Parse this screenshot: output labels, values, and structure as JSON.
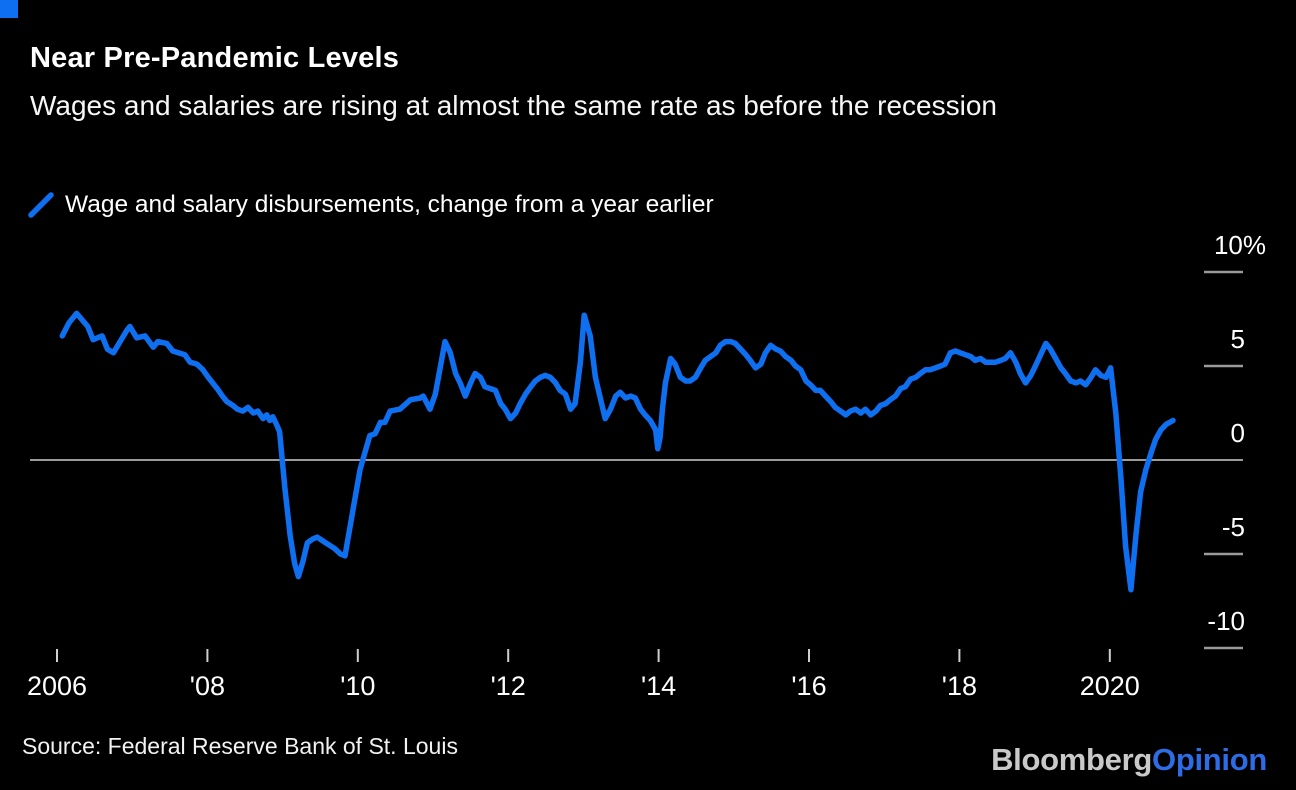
{
  "brand": {
    "mark_color": "#0e70f0",
    "logo_bloomberg": "Bloomberg",
    "logo_opinion": "Opinion",
    "bloomberg_color": "#c9c9c9",
    "opinion_color": "#2e6ce6"
  },
  "header": {
    "title": "Near Pre-Pandemic Levels",
    "subtitle": "Wages and salaries are rising at almost the same rate as before the recession"
  },
  "legend": {
    "label": "Wage and salary disbursements, change from a year earlier",
    "color": "#0e70f0"
  },
  "source": {
    "text": "Source: Federal Reserve Bank of St. Louis"
  },
  "chart_data": {
    "type": "line",
    "title": "Near Pre-Pandemic Levels",
    "subtitle": "Wages and salaries are rising at almost the same rate as before the recession",
    "unit": "%",
    "grid": "zero-line-only",
    "legend_position": "top-left",
    "x_range": [
      2005.6,
      2021.8
    ],
    "y_range": [
      -12,
      12
    ],
    "y_ticks": [
      {
        "label": "10%",
        "value": 10
      },
      {
        "label": "5",
        "value": 5
      },
      {
        "label": "0",
        "value": 0
      },
      {
        "label": "-5",
        "value": -5
      },
      {
        "label": "-10",
        "value": -10
      }
    ],
    "x_ticks": [
      {
        "label": "2006",
        "year": 2006
      },
      {
        "label": "'08",
        "year": 2008
      },
      {
        "label": "'10",
        "year": 2010
      },
      {
        "label": "'12",
        "year": 2012
      },
      {
        "label": "'14",
        "year": 2014
      },
      {
        "label": "'16",
        "year": 2016
      },
      {
        "label": "'18",
        "year": 2018
      },
      {
        "label": "2020",
        "year": 2020
      }
    ],
    "series": [
      {
        "name": "Wage and salary disbursements, change from a year earlier",
        "color": "#0e70f0",
        "points": [
          [
            2006.07,
            6.6
          ],
          [
            2006.16,
            7.3
          ],
          [
            2006.26,
            7.8
          ],
          [
            2006.41,
            7.1
          ],
          [
            2006.48,
            6.4
          ],
          [
            2006.6,
            6.6
          ],
          [
            2006.67,
            5.9
          ],
          [
            2006.75,
            5.7
          ],
          [
            2006.93,
            6.9
          ],
          [
            2006.97,
            7.1
          ],
          [
            2007.06,
            6.5
          ],
          [
            2007.17,
            6.6
          ],
          [
            2007.28,
            6.0
          ],
          [
            2007.34,
            6.3
          ],
          [
            2007.46,
            6.2
          ],
          [
            2007.54,
            5.8
          ],
          [
            2007.7,
            5.6
          ],
          [
            2007.77,
            5.2
          ],
          [
            2007.86,
            5.1
          ],
          [
            2007.94,
            4.8
          ],
          [
            2008.01,
            4.4
          ],
          [
            2008.13,
            3.8
          ],
          [
            2008.2,
            3.4
          ],
          [
            2008.26,
            3.1
          ],
          [
            2008.34,
            2.9
          ],
          [
            2008.4,
            2.7
          ],
          [
            2008.47,
            2.6
          ],
          [
            2008.54,
            2.8
          ],
          [
            2008.61,
            2.5
          ],
          [
            2008.67,
            2.6
          ],
          [
            2008.74,
            2.2
          ],
          [
            2008.79,
            2.4
          ],
          [
            2008.83,
            2.1
          ],
          [
            2008.87,
            2.3
          ],
          [
            2008.93,
            1.8
          ],
          [
            2008.96,
            1.5
          ],
          [
            2009.03,
            -1.5
          ],
          [
            2009.1,
            -4.0
          ],
          [
            2009.16,
            -5.5
          ],
          [
            2009.21,
            -6.2
          ],
          [
            2009.27,
            -5.4
          ],
          [
            2009.33,
            -4.4
          ],
          [
            2009.4,
            -4.2
          ],
          [
            2009.46,
            -4.1
          ],
          [
            2009.57,
            -4.4
          ],
          [
            2009.69,
            -4.7
          ],
          [
            2009.77,
            -5.0
          ],
          [
            2009.83,
            -5.1
          ],
          [
            2009.93,
            -2.8
          ],
          [
            2010.03,
            -0.5
          ],
          [
            2010.16,
            1.3
          ],
          [
            2010.23,
            1.4
          ],
          [
            2010.3,
            2.0
          ],
          [
            2010.36,
            2.0
          ],
          [
            2010.43,
            2.6
          ],
          [
            2010.56,
            2.7
          ],
          [
            2010.7,
            3.2
          ],
          [
            2010.83,
            3.3
          ],
          [
            2010.87,
            3.4
          ],
          [
            2010.96,
            2.7
          ],
          [
            2011.03,
            3.5
          ],
          [
            2011.16,
            6.3
          ],
          [
            2011.23,
            5.7
          ],
          [
            2011.3,
            4.6
          ],
          [
            2011.36,
            4.1
          ],
          [
            2011.43,
            3.4
          ],
          [
            2011.5,
            4.1
          ],
          [
            2011.56,
            4.6
          ],
          [
            2011.63,
            4.4
          ],
          [
            2011.69,
            3.9
          ],
          [
            2011.76,
            3.8
          ],
          [
            2011.83,
            3.7
          ],
          [
            2011.9,
            3.0
          ],
          [
            2011.96,
            2.7
          ],
          [
            2012.03,
            2.2
          ],
          [
            2012.1,
            2.5
          ],
          [
            2012.16,
            3.0
          ],
          [
            2012.23,
            3.5
          ],
          [
            2012.3,
            3.9
          ],
          [
            2012.36,
            4.2
          ],
          [
            2012.43,
            4.4
          ],
          [
            2012.49,
            4.5
          ],
          [
            2012.56,
            4.4
          ],
          [
            2012.63,
            4.1
          ],
          [
            2012.69,
            3.7
          ],
          [
            2012.76,
            3.5
          ],
          [
            2012.83,
            2.7
          ],
          [
            2012.89,
            3.0
          ],
          [
            2012.96,
            5.2
          ],
          [
            2013.01,
            7.7
          ],
          [
            2013.09,
            6.6
          ],
          [
            2013.16,
            4.4
          ],
          [
            2013.23,
            3.2
          ],
          [
            2013.29,
            2.2
          ],
          [
            2013.36,
            2.7
          ],
          [
            2013.43,
            3.4
          ],
          [
            2013.49,
            3.6
          ],
          [
            2013.56,
            3.3
          ],
          [
            2013.63,
            3.4
          ],
          [
            2013.69,
            3.3
          ],
          [
            2013.76,
            2.7
          ],
          [
            2013.82,
            2.4
          ],
          [
            2013.89,
            2.1
          ],
          [
            2013.96,
            1.6
          ],
          [
            2013.99,
            0.6
          ],
          [
            2014.02,
            1.2
          ],
          [
            2014.05,
            2.7
          ],
          [
            2014.09,
            4.1
          ],
          [
            2014.16,
            5.4
          ],
          [
            2014.22,
            5.1
          ],
          [
            2014.29,
            4.4
          ],
          [
            2014.36,
            4.2
          ],
          [
            2014.42,
            4.2
          ],
          [
            2014.49,
            4.4
          ],
          [
            2014.56,
            4.9
          ],
          [
            2014.62,
            5.3
          ],
          [
            2014.69,
            5.5
          ],
          [
            2014.76,
            5.7
          ],
          [
            2014.82,
            6.1
          ],
          [
            2014.89,
            6.3
          ],
          [
            2014.96,
            6.3
          ],
          [
            2015.02,
            6.2
          ],
          [
            2015.09,
            5.9
          ],
          [
            2015.16,
            5.6
          ],
          [
            2015.22,
            5.3
          ],
          [
            2015.29,
            4.9
          ],
          [
            2015.36,
            5.1
          ],
          [
            2015.42,
            5.7
          ],
          [
            2015.49,
            6.1
          ],
          [
            2015.56,
            5.9
          ],
          [
            2015.62,
            5.8
          ],
          [
            2015.69,
            5.5
          ],
          [
            2015.76,
            5.3
          ],
          [
            2015.82,
            5.0
          ],
          [
            2015.89,
            4.8
          ],
          [
            2015.96,
            4.2
          ],
          [
            2016.02,
            4.0
          ],
          [
            2016.09,
            3.7
          ],
          [
            2016.15,
            3.7
          ],
          [
            2016.22,
            3.4
          ],
          [
            2016.29,
            3.1
          ],
          [
            2016.35,
            2.8
          ],
          [
            2016.42,
            2.6
          ],
          [
            2016.49,
            2.4
          ],
          [
            2016.55,
            2.6
          ],
          [
            2016.62,
            2.7
          ],
          [
            2016.69,
            2.5
          ],
          [
            2016.75,
            2.7
          ],
          [
            2016.82,
            2.4
          ],
          [
            2016.89,
            2.6
          ],
          [
            2016.95,
            2.9
          ],
          [
            2017.02,
            3.0
          ],
          [
            2017.08,
            3.2
          ],
          [
            2017.15,
            3.4
          ],
          [
            2017.22,
            3.8
          ],
          [
            2017.28,
            3.9
          ],
          [
            2017.35,
            4.3
          ],
          [
            2017.42,
            4.4
          ],
          [
            2017.48,
            4.6
          ],
          [
            2017.55,
            4.8
          ],
          [
            2017.61,
            4.8
          ],
          [
            2017.75,
            5.0
          ],
          [
            2017.81,
            5.1
          ],
          [
            2017.88,
            5.7
          ],
          [
            2017.95,
            5.8
          ],
          [
            2018.01,
            5.7
          ],
          [
            2018.08,
            5.6
          ],
          [
            2018.15,
            5.5
          ],
          [
            2018.21,
            5.3
          ],
          [
            2018.28,
            5.4
          ],
          [
            2018.35,
            5.2
          ],
          [
            2018.41,
            5.2
          ],
          [
            2018.48,
            5.2
          ],
          [
            2018.55,
            5.3
          ],
          [
            2018.61,
            5.4
          ],
          [
            2018.68,
            5.7
          ],
          [
            2018.75,
            5.2
          ],
          [
            2018.81,
            4.6
          ],
          [
            2018.88,
            4.1
          ],
          [
            2018.95,
            4.5
          ],
          [
            2019.01,
            5.0
          ],
          [
            2019.08,
            5.6
          ],
          [
            2019.15,
            6.2
          ],
          [
            2019.21,
            5.9
          ],
          [
            2019.28,
            5.4
          ],
          [
            2019.35,
            4.9
          ],
          [
            2019.41,
            4.6
          ],
          [
            2019.48,
            4.2
          ],
          [
            2019.55,
            4.1
          ],
          [
            2019.61,
            4.2
          ],
          [
            2019.68,
            4.0
          ],
          [
            2019.75,
            4.4
          ],
          [
            2019.81,
            4.8
          ],
          [
            2019.88,
            4.5
          ],
          [
            2019.95,
            4.4
          ],
          [
            2020.01,
            4.9
          ],
          [
            2020.08,
            2.5
          ],
          [
            2020.15,
            -1.1
          ],
          [
            2020.21,
            -4.6
          ],
          [
            2020.28,
            -6.9
          ],
          [
            2020.35,
            -3.9
          ],
          [
            2020.41,
            -1.7
          ],
          [
            2020.48,
            -0.5
          ],
          [
            2020.55,
            0.4
          ],
          [
            2020.61,
            1.1
          ],
          [
            2020.68,
            1.6
          ],
          [
            2020.75,
            1.9
          ],
          [
            2020.84,
            2.1
          ]
        ]
      }
    ]
  }
}
